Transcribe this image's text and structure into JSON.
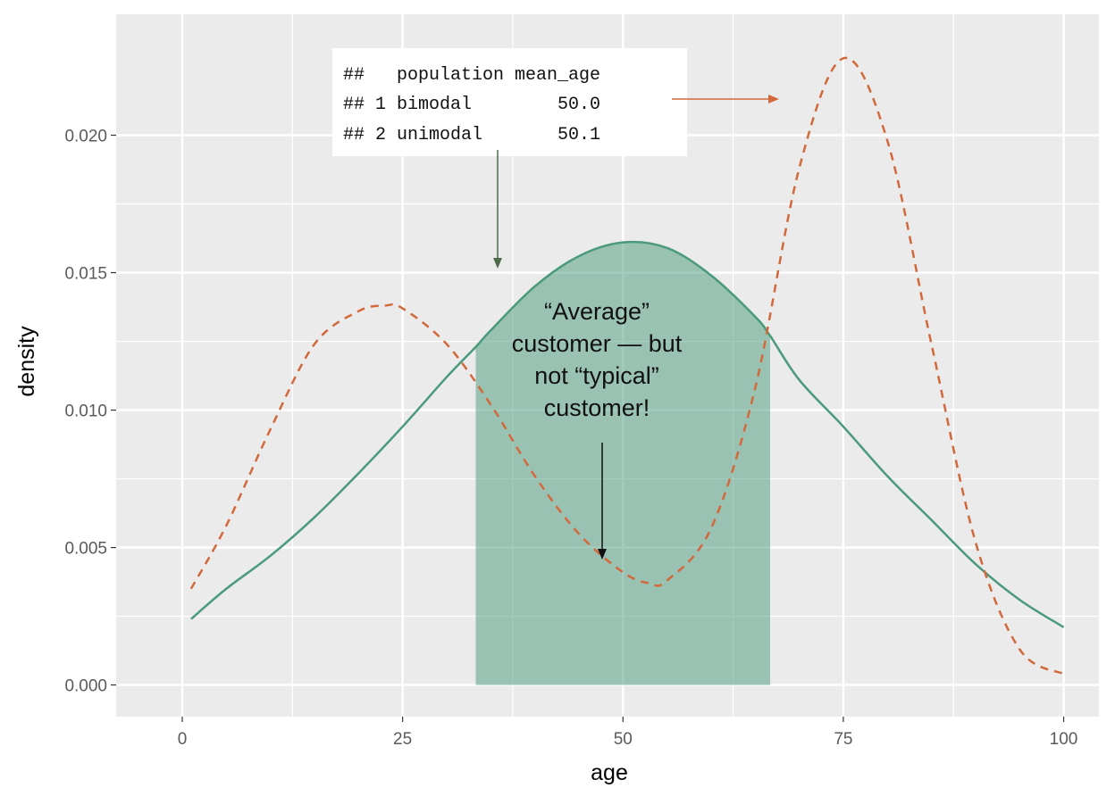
{
  "chart_data": {
    "type": "area",
    "xlabel": "age",
    "ylabel": "density",
    "xlim": [
      -7.5,
      104
    ],
    "ylim": [
      -0.00115,
      0.0244
    ],
    "x_ticks": [
      0,
      25,
      50,
      75,
      100
    ],
    "x_tick_labels": [
      "0",
      "25",
      "50",
      "75",
      "100"
    ],
    "y_ticks": [
      0.0,
      0.005,
      0.01,
      0.015,
      0.02
    ],
    "y_tick_labels": [
      "0.000",
      "0.005",
      "0.010",
      "0.015",
      "0.020"
    ],
    "grid": true,
    "background": "#EBEBEB",
    "series": [
      {
        "style": "solid",
        "color": "#4A9A7B",
        "x": [
          1,
          5,
          10,
          15,
          20,
          25,
          30,
          33.3,
          35,
          40,
          45,
          50,
          55,
          60,
          65,
          66.7,
          70,
          75,
          80,
          85,
          90,
          95,
          100
        ],
        "y": [
          0.0024,
          0.0035,
          0.0047,
          0.0061,
          0.0077,
          0.0094,
          0.0112,
          0.0123,
          0.0129,
          0.0145,
          0.0156,
          0.0161,
          0.0159,
          0.0149,
          0.0134,
          0.0127,
          0.0111,
          0.0094,
          0.0076,
          0.006,
          0.0044,
          0.0031,
          0.0021
        ]
      },
      {
        "style": "dashed",
        "color": "#D2693C",
        "x": [
          1,
          5,
          10,
          15,
          20,
          23,
          25,
          30,
          35,
          40,
          45,
          50,
          53,
          55,
          60,
          65,
          70,
          75,
          80,
          85,
          90,
          95,
          100
        ],
        "y": [
          0.0035,
          0.0058,
          0.0093,
          0.0124,
          0.0136,
          0.0138,
          0.0137,
          0.0124,
          0.0102,
          0.0076,
          0.0055,
          0.0041,
          0.0037,
          0.0038,
          0.0057,
          0.0108,
          0.0188,
          0.0228,
          0.0198,
          0.0124,
          0.0052,
          0.0013,
          0.0004
        ]
      }
    ],
    "shaded_region": {
      "series": 0,
      "x_from": 33.3,
      "x_to": 66.7,
      "color": "#4A9A7B",
      "opacity": 0.5
    },
    "annotations": {
      "table_lines": [
        "##   population mean_age",
        "## 1 bimodal        50.0",
        "## 2 unimodal       50.1"
      ],
      "callout_lines": [
        "“Average”",
        "customer — but",
        "not “typical”",
        "customer!"
      ]
    }
  }
}
